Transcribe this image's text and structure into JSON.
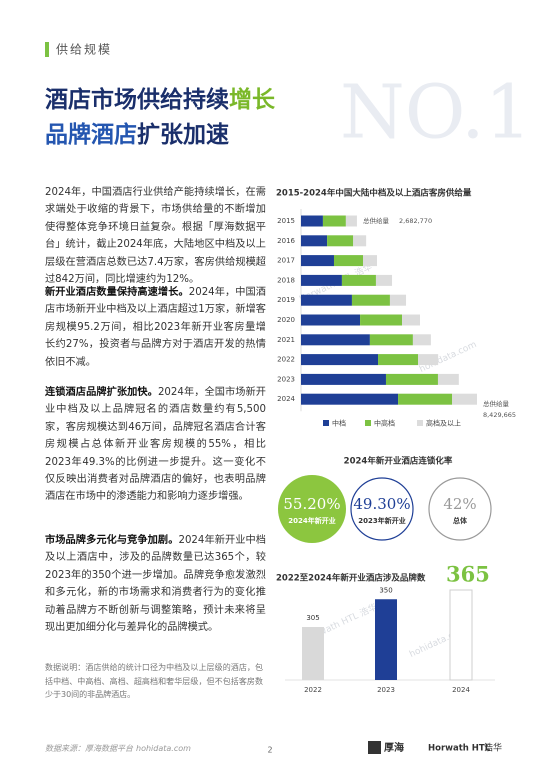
{
  "header": {
    "section": "供给规模",
    "watermark": "NO.1",
    "title_line1": {
      "normal": "酒店市场供给持续",
      "highlight": "增长"
    },
    "title_line2": {
      "highlight": "品牌酒店",
      "normal": "扩张加速"
    }
  },
  "body": {
    "paragraphs": [
      {
        "text": "2024年，中国酒店行业供给产能持续增长，在需求端处于收缩的背景下，市场供给量的不断增加使得整体竞争环境日益复杂。根据「厚海数据平台」统计，截止2024年底，大陆地区中档及以上层级在营酒店总数已达7.4万家，客房供给规模超过842万间，同比增速约为12%。"
      },
      {
        "lead": "新开业酒店数量保持高速增长。",
        "text": "2024年，中国酒店市场新开业中档及以上酒店超过1万家，新增客房规模95.2万间，相比2023年新开业客房量增长约27%，投资者与品牌方对于酒店开发的热情依旧不减。"
      },
      {
        "lead": "连锁酒店品牌扩张加快。",
        "text": "2024年，全国市场新开业中档及以上品牌冠名的酒店数量约有5,500家，客房规模达到46万间，品牌冠名酒店合计客房规模占总体新开业客房规模的55%，相比2023年49.3%的比例进一步提升。这一变化不仅反映出消费者对品牌酒店的偏好，也表明品牌酒店在市场中的渗透能力和影响力逐步增强。"
      },
      {
        "lead": "市场品牌多元化与竞争加剧。",
        "text": "2024年新开业中档及以上酒店中，涉及的品牌数量已达365个，较2023年的350个进一步增加。品牌竞争愈发激烈和多元化，新的市场需求和消费者行为的变化推动着品牌方不断创新与调整策略，预计未来将呈现出更加细分化与差异化的品牌模式。"
      }
    ],
    "note": "数据说明：酒店供给的统计口径为中档及以上层级的酒店，包括中档、中高档、高档、超高档和奢华层级，但不包括客房数少于30间的非品牌酒店。"
  },
  "chart_data": [
    {
      "type": "bar",
      "orientation": "horizontal",
      "stacked": true,
      "title": "2015-2024年中国大陆中档及以上酒店客房供给量",
      "categories": [
        "2015",
        "2016",
        "2017",
        "2018",
        "2019",
        "2020",
        "2021",
        "2022",
        "2023",
        "2024"
      ],
      "series": [
        {
          "name": "中档",
          "color": "#1f3f96",
          "values": [
            1050000,
            1250000,
            1580000,
            1960000,
            2440000,
            2830000,
            3300000,
            3690000,
            4070000,
            4650000
          ]
        },
        {
          "name": "中高档",
          "color": "#7cc242",
          "values": [
            1100000,
            1250000,
            1390000,
            1630000,
            1820000,
            2010000,
            2060000,
            1920000,
            2490000,
            2590000
          ]
        },
        {
          "name": "高档及以上",
          "color": "#dcdcdc",
          "values": [
            530000,
            620000,
            670000,
            770000,
            770000,
            860000,
            860000,
            960000,
            1000000,
            1190000
          ]
        }
      ],
      "annotations": [
        {
          "category": "2015",
          "text": "总供给量",
          "value": 2682770,
          "label": "2,682,770"
        },
        {
          "category": "2024",
          "text": "总供给量",
          "value": 8429665,
          "label": "8,429,665"
        }
      ],
      "legend": "bottom"
    },
    {
      "type": "circle",
      "title": "2024年新开业酒店连锁化率",
      "categories": [
        "2024年新开业",
        "2023年新开业",
        "总体"
      ],
      "values": [
        55.2,
        49.3,
        42
      ],
      "value_labels": [
        "55.20%",
        "49.30%",
        "42%"
      ],
      "colors": [
        "#8cc63f",
        "#1f3f96",
        "#9a9a9a"
      ],
      "styles": [
        "filled",
        "outline",
        "outline"
      ]
    },
    {
      "type": "bar",
      "title": "2022至2024年新开业酒店涉及品牌数",
      "categories": [
        "2022",
        "2023",
        "2024"
      ],
      "values": [
        305,
        350,
        365
      ],
      "colors": [
        "#d9d9d9",
        "#1f3f96",
        "#ffffff"
      ]
    }
  ],
  "watermarks": [
    "Horwath HTL 浩华",
    "hohidata.com"
  ],
  "footer": {
    "source_label": "数据来源：",
    "source": "厚海数据平台",
    "url": "hohidata.com",
    "page": "2",
    "logos": [
      "厚海",
      "Horwath HTL",
      "浩华"
    ]
  }
}
